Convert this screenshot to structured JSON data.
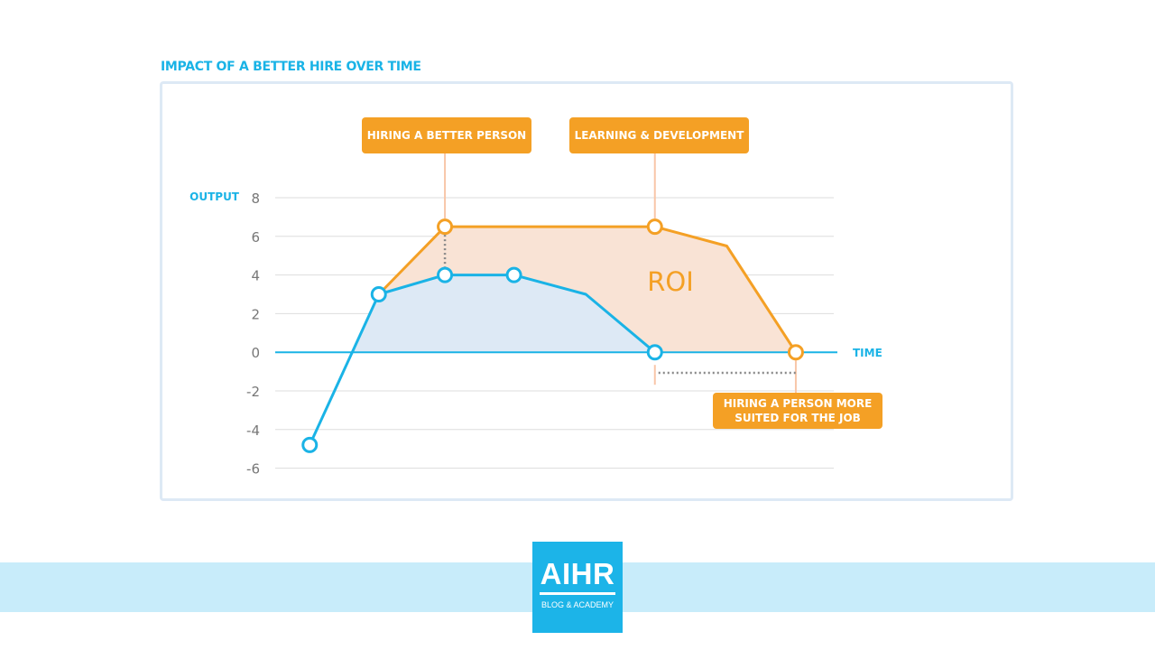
{
  "page": {
    "title": "IMPACT OF A BETTER HIRE OVER TIME"
  },
  "colors": {
    "blue": "#1ab3e6",
    "orange": "#f4a025",
    "roi_fill": "#f9e3d5",
    "blue_fill": "#dde9f5",
    "grid": "#dddddd"
  },
  "chart_data": {
    "type": "line",
    "title": "IMPACT OF A BETTER HIRE OVER TIME",
    "ylabel": "OUTPUT",
    "xlabel": "TIME",
    "ylim": [
      -6,
      8
    ],
    "yticks": [
      8,
      6,
      4,
      2,
      0,
      -2,
      -4,
      -6
    ],
    "x_range": [
      0,
      10
    ],
    "grid": true,
    "series": [
      {
        "x": [
          0.6,
          1.8,
          2.95,
          4.15,
          5.4,
          6.6
        ],
        "y": [
          -4.8,
          3,
          4,
          4,
          3,
          0
        ],
        "markers": [
          true,
          true,
          true,
          true,
          false,
          true
        ],
        "color": "#1ab3e6"
      },
      {
        "x": [
          1.8,
          2.95,
          6.6,
          7.85,
          9.05
        ],
        "y": [
          3,
          6.5,
          6.5,
          5.5,
          0
        ],
        "markers": [
          false,
          true,
          true,
          false,
          true
        ],
        "color": "#f4a025"
      }
    ],
    "region_label": "ROI",
    "annotations": [
      {
        "text": [
          "HIRING A BETTER PERSON"
        ]
      },
      {
        "text": [
          "LEARNING & DEVELOPMENT"
        ]
      },
      {
        "text": [
          "HIRING A PERSON MORE",
          "SUITED FOR THE JOB"
        ]
      }
    ]
  },
  "logo": {
    "main": "AIHR",
    "sub": "BLOG & ACADEMY"
  }
}
